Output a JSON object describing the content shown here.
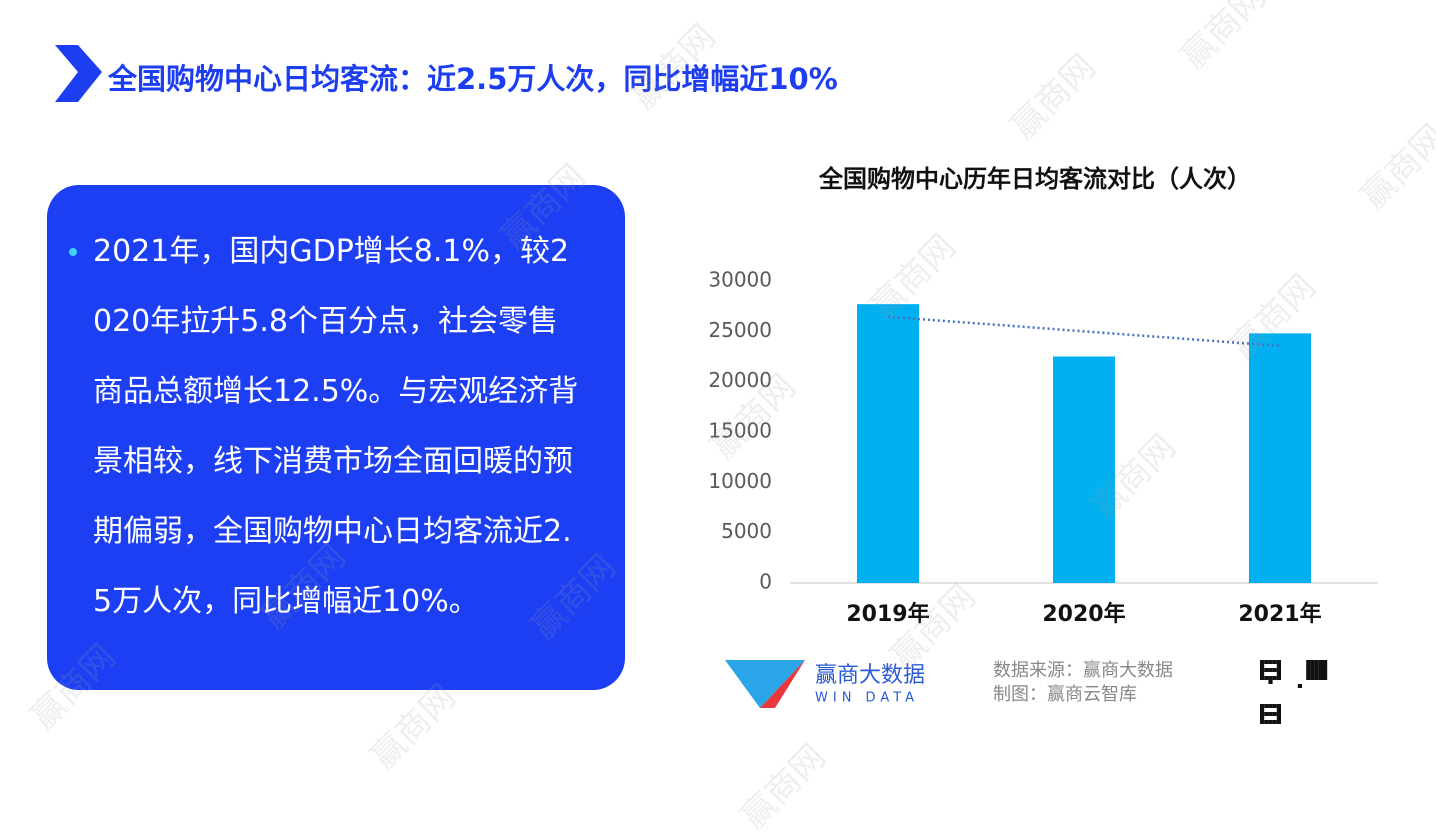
{
  "header": {
    "title": "全国购物中心日均客流：近2.5万人次，同比增幅近10%"
  },
  "panel": {
    "text": "2021年，国内GDP增长8.1%，较2020年拉升5.8个百分点，社会零售商品总额增长12.5%。与宏观经济背景相较，线下消费市场全面回暖的预期偏弱，全国购物中心日均客流近2.5万人次，同比增幅近10%。"
  },
  "chart_data": {
    "type": "bar",
    "title": "全国购物中心历年日均客流对比（人次）",
    "categories": [
      "2019年",
      "2020年",
      "2021年"
    ],
    "values": [
      27700,
      22500,
      24800
    ],
    "color": "#00b0f0",
    "ylim": [
      0,
      30000
    ],
    "yticks": [
      0,
      5000,
      10000,
      15000,
      20000,
      25000,
      30000
    ],
    "trendline": true,
    "trendline_color": "#4472c4"
  },
  "footer": {
    "logo_name": "赢商大数据",
    "logo_sub": "WIN DATA",
    "source": "数据来源：赢商大数据",
    "maker": "制图：赢商云智库"
  },
  "watermark": "赢商网"
}
